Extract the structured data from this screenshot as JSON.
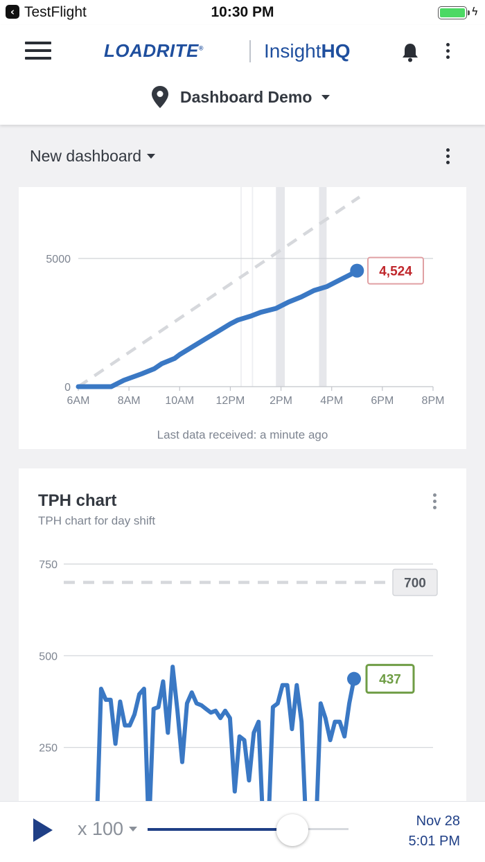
{
  "status_bar": {
    "back_app": "TestFlight",
    "time": "10:30 PM",
    "battery_level": 1.0
  },
  "header": {
    "logo_wordmark": "LOADRITE",
    "logo_mark": "®",
    "product_prefix": "Insight",
    "product_suffix": "HQ",
    "site_name": "Dashboard Demo",
    "icons": [
      "menu-icon",
      "bell-icon",
      "more-vertical-icon",
      "location-pin-icon",
      "chevron-down-icon"
    ]
  },
  "dashboard": {
    "title": "New dashboard"
  },
  "widgets": {
    "cumulative": {
      "latest_value_label": "4,524",
      "last_received": "Last data received: a minute ago"
    },
    "tph": {
      "title": "TPH chart",
      "subtitle": "TPH chart for day shift",
      "target_label": "700",
      "latest_value_label": "437"
    }
  },
  "playback": {
    "speed_label": "x 100",
    "progress": 0.72,
    "date": "Nov 28",
    "time": "5:01 PM"
  },
  "colors": {
    "brand": "#1f4f9e",
    "series": "#3a78c4",
    "target": "#d6d8dc",
    "alert": "#c0282d",
    "ok": "#6f9d45",
    "playback": "#1f3f86"
  },
  "chart_data": [
    {
      "type": "line",
      "x_ticks": [
        "6AM",
        "8AM",
        "10AM",
        "12PM",
        "2PM",
        "4PM",
        "6PM",
        "8PM"
      ],
      "y_ticks": [
        "0",
        "5000"
      ],
      "xlim": [
        6,
        20
      ],
      "ylim": [
        0,
        5000
      ],
      "grid": "horizontal",
      "shaded_bands": [
        [
          12.4,
          12.45
        ],
        [
          12.85,
          12.9
        ],
        [
          13.8,
          14.15
        ],
        [
          15.5,
          15.8
        ]
      ],
      "series": [
        {
          "kind": "actual",
          "x": [
            6,
            7.3,
            7.8,
            8.5,
            9,
            9.3,
            9.8,
            10,
            10.5,
            11,
            11.5,
            12,
            12.3,
            12.8,
            13.2,
            13.8,
            14.3,
            14.8,
            15.3,
            15.8,
            16.2,
            16.7,
            17
          ],
          "y": [
            0,
            0,
            250,
            500,
            700,
            900,
            1100,
            1250,
            1550,
            1850,
            2150,
            2450,
            2600,
            2750,
            2900,
            3050,
            3300,
            3500,
            3750,
            3900,
            4100,
            4350,
            4524
          ]
        },
        {
          "kind": "target",
          "x": [
            6,
            17.1
          ],
          "y": [
            0,
            7400
          ]
        }
      ],
      "latest_value": 4524
    },
    {
      "type": "line",
      "title": "TPH chart",
      "subtitle": "TPH chart for day shift",
      "y_ticks": [
        "250",
        "500",
        "750"
      ],
      "ylim": [
        0,
        750
      ],
      "grid": "horizontal",
      "target": 700,
      "latest_value": 437,
      "series": [
        {
          "kind": "actual",
          "values": [
            0,
            410,
            380,
            380,
            260,
            375,
            310,
            310,
            340,
            395,
            410,
            20,
            355,
            360,
            430,
            290,
            470,
            350,
            210,
            370,
            400,
            370,
            365,
            355,
            345,
            350,
            330,
            350,
            330,
            130,
            280,
            270,
            160,
            290,
            320,
            20,
            20,
            360,
            370,
            420,
            420,
            300,
            420,
            320,
            20,
            20,
            20,
            370,
            330,
            270,
            320,
            320,
            280,
            370,
            437
          ]
        }
      ]
    }
  ]
}
